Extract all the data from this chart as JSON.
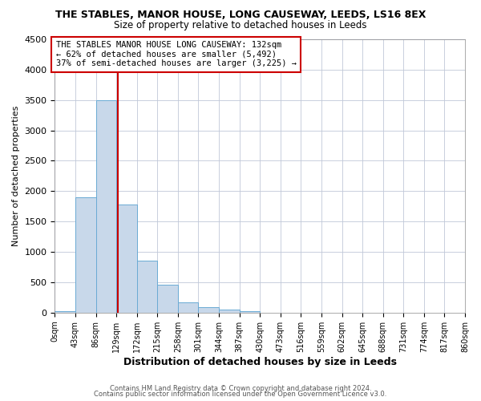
{
  "title": "THE STABLES, MANOR HOUSE, LONG CAUSEWAY, LEEDS, LS16 8EX",
  "subtitle": "Size of property relative to detached houses in Leeds",
  "xlabel": "Distribution of detached houses by size in Leeds",
  "ylabel": "Number of detached properties",
  "bar_edges": [
    0,
    43,
    86,
    129,
    172,
    215,
    258,
    301,
    344,
    387,
    430,
    473,
    516,
    559,
    602,
    645,
    688,
    731,
    774,
    817,
    860
  ],
  "bar_heights": [
    30,
    1900,
    3500,
    1775,
    850,
    460,
    175,
    90,
    50,
    30,
    0,
    0,
    0,
    0,
    0,
    0,
    0,
    0,
    0,
    0
  ],
  "bar_color": "#c8d8ea",
  "bar_edge_color": "#6aaad4",
  "vline_x": 132,
  "vline_color": "#cc0000",
  "ylim": [
    0,
    4500
  ],
  "xlim": [
    0,
    860
  ],
  "annotation_title": "THE STABLES MANOR HOUSE LONG CAUSEWAY: 132sqm",
  "annotation_line1": "← 62% of detached houses are smaller (5,492)",
  "annotation_line2": "37% of semi-detached houses are larger (3,225) →",
  "annotation_box_color": "#cc0000",
  "tick_labels": [
    "0sqm",
    "43sqm",
    "86sqm",
    "129sqm",
    "172sqm",
    "215sqm",
    "258sqm",
    "301sqm",
    "344sqm",
    "387sqm",
    "430sqm",
    "473sqm",
    "516sqm",
    "559sqm",
    "602sqm",
    "645sqm",
    "688sqm",
    "731sqm",
    "774sqm",
    "817sqm",
    "860sqm"
  ],
  "footer1": "Contains HM Land Registry data © Crown copyright and database right 2024.",
  "footer2": "Contains public sector information licensed under the Open Government Licence v3.0.",
  "yticks": [
    0,
    500,
    1000,
    1500,
    2000,
    2500,
    3000,
    3500,
    4000,
    4500
  ]
}
